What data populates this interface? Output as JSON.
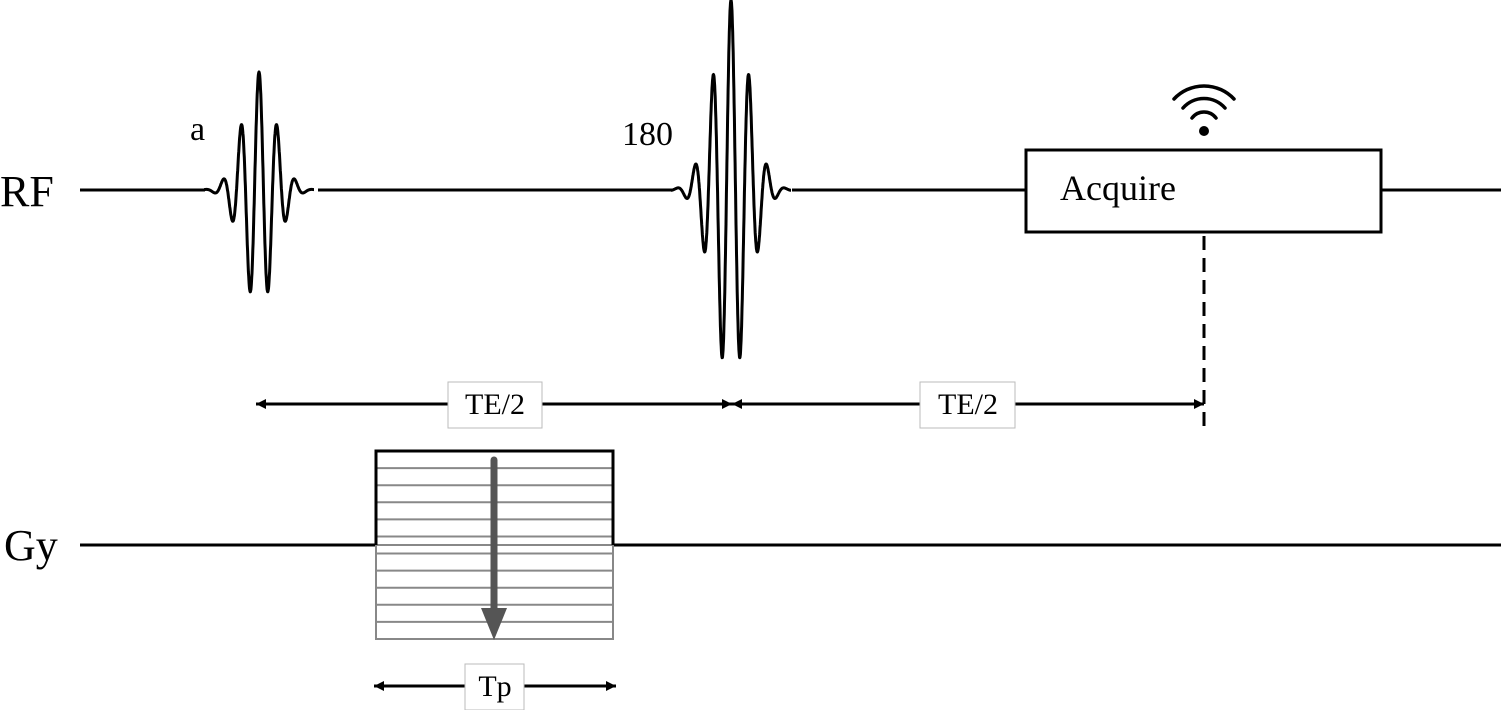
{
  "rows": {
    "rf": {
      "label": "RF"
    },
    "gy": {
      "label": "Gy"
    }
  },
  "rf_pulses": {
    "excitation": {
      "label": "a"
    },
    "refocusing": {
      "label": "180"
    }
  },
  "acquire": {
    "label": "Acquire",
    "icon": "wifi-signal-icon"
  },
  "timings": {
    "te_first_half": "TE/2",
    "te_second_half": "TE/2",
    "phase_duration": "Tp"
  },
  "gradient": {
    "icon": "arrow-down-icon"
  },
  "colors": {
    "line": "#000000",
    "dashed": "#000000",
    "gradient_lines": "#888888",
    "arrow_fill": "#555555"
  }
}
